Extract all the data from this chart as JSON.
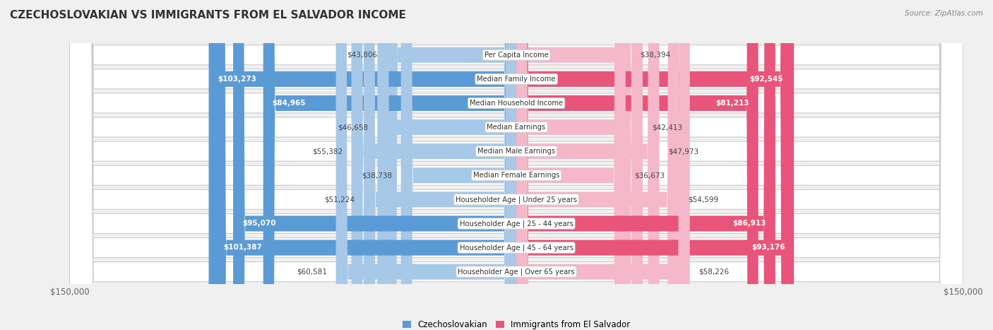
{
  "title": "CZECHOSLOVAKIAN VS IMMIGRANTS FROM EL SALVADOR INCOME",
  "source": "Source: ZipAtlas.com",
  "categories": [
    "Per Capita Income",
    "Median Family Income",
    "Median Household Income",
    "Median Earnings",
    "Median Male Earnings",
    "Median Female Earnings",
    "Householder Age | Under 25 years",
    "Householder Age | 25 - 44 years",
    "Householder Age | 45 - 64 years",
    "Householder Age | Over 65 years"
  ],
  "czechoslovakian": [
    43806,
    103273,
    84965,
    46658,
    55382,
    38738,
    51224,
    95070,
    101387,
    60581
  ],
  "el_salvador": [
    38394,
    92545,
    81213,
    42413,
    47973,
    36673,
    54599,
    86913,
    93176,
    58226
  ],
  "max_val": 150000,
  "color_czech_light": "#a8c8e8",
  "color_czech_dark": "#5b9bd5",
  "color_salvador_light": "#f4b8ca",
  "color_salvador_dark": "#e8547a",
  "bg_color": "#f0f0f0",
  "row_bg": "#e8e8e8",
  "label_box_color": "#ffffff"
}
